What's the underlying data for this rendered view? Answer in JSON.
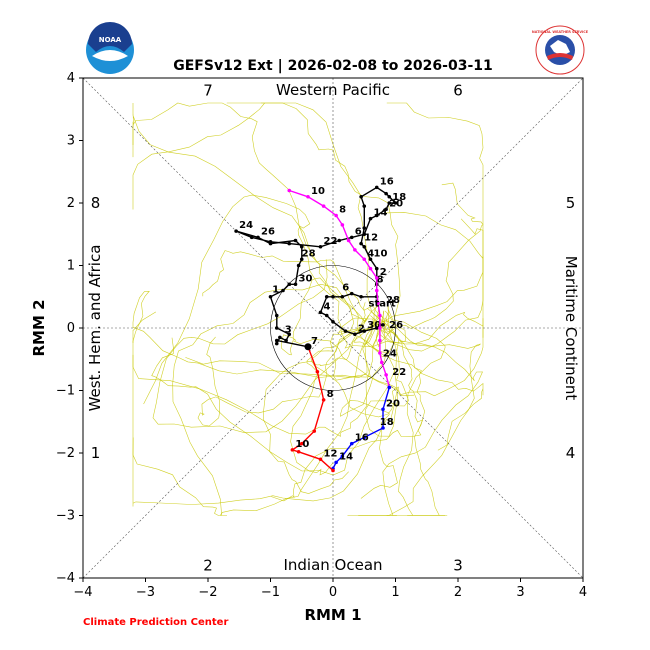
{
  "chart_data": {
    "type": "line",
    "title": "GEFSv12 Ext | 2026-02-08 to 2026-03-11",
    "xlabel": "RMM 1",
    "ylabel": "RMM 2",
    "xlim": [
      -4,
      4
    ],
    "ylim": [
      -4,
      4
    ],
    "xticks": [
      -4,
      -3,
      -2,
      -1,
      0,
      1,
      2,
      3,
      4
    ],
    "yticks": [
      -4,
      -3,
      -2,
      -1,
      0,
      1,
      2,
      3,
      4
    ],
    "phase_numbers": [
      {
        "label": "7",
        "x": -2.0,
        "y": 3.8
      },
      {
        "label": "6",
        "x": 2.0,
        "y": 3.8
      },
      {
        "label": "8",
        "x": -3.8,
        "y": 2.0
      },
      {
        "label": "5",
        "x": 3.8,
        "y": 2.0
      },
      {
        "label": "1",
        "x": -3.8,
        "y": -2.0
      },
      {
        "label": "4",
        "x": 3.8,
        "y": -2.0
      },
      {
        "label": "2",
        "x": -2.0,
        "y": -3.8
      },
      {
        "label": "3",
        "x": 2.0,
        "y": -3.8
      }
    ],
    "regions": {
      "top": "Western Pacific",
      "bottom": "Indian Ocean",
      "left": "West. Hem. and Africa",
      "right": "Maritime Continent"
    },
    "series": [
      {
        "name": "observed",
        "color": "#000000",
        "points": [
          [
            -0.4,
            -0.3
          ],
          [
            -0.9,
            -0.2
          ],
          [
            -0.9,
            -0.25
          ],
          [
            -0.85,
            -0.15
          ],
          [
            -0.75,
            -0.2
          ],
          [
            -0.7,
            -0.1
          ],
          [
            -0.9,
            0.0
          ],
          [
            -0.9,
            0.2
          ],
          [
            -1.0,
            0.5
          ],
          [
            -0.8,
            0.6
          ],
          [
            -0.7,
            0.7
          ],
          [
            -0.6,
            0.7
          ],
          [
            -0.55,
            1.0
          ],
          [
            -0.5,
            1.1
          ],
          [
            -0.5,
            1.3
          ],
          [
            -0.6,
            1.4
          ],
          [
            -1.0,
            1.35
          ],
          [
            -1.2,
            1.45
          ],
          [
            -1.55,
            1.55
          ],
          [
            -1.3,
            1.45
          ],
          [
            -1.0,
            1.38
          ],
          [
            -0.7,
            1.35
          ],
          [
            -0.2,
            1.3
          ],
          [
            0.1,
            1.4
          ],
          [
            0.3,
            1.45
          ],
          [
            0.5,
            1.5
          ],
          [
            0.6,
            1.75
          ],
          [
            0.7,
            1.8
          ],
          [
            0.85,
            1.9
          ],
          [
            0.9,
            2.0
          ],
          [
            1.0,
            2.0
          ],
          [
            0.9,
            2.1
          ],
          [
            0.85,
            2.15
          ],
          [
            0.7,
            2.25
          ],
          [
            0.45,
            2.1
          ],
          [
            0.5,
            1.95
          ],
          [
            0.5,
            1.6
          ],
          [
            0.45,
            1.35
          ],
          [
            0.5,
            1.3
          ],
          [
            0.6,
            1.1
          ],
          [
            0.7,
            0.95
          ],
          [
            0.7,
            0.7
          ],
          [
            0.7,
            0.5
          ],
          [
            0.45,
            0.5
          ],
          [
            0.3,
            0.55
          ],
          [
            0.15,
            0.5
          ],
          [
            0.0,
            0.5
          ],
          [
            -0.1,
            0.5
          ],
          [
            -0.2,
            0.25
          ],
          [
            -0.1,
            0.2
          ],
          [
            0.0,
            0.1
          ],
          [
            0.2,
            -0.05
          ],
          [
            0.35,
            -0.1
          ],
          [
            0.5,
            -0.05
          ],
          [
            0.7,
            0.0
          ],
          [
            0.75,
            0.05
          ],
          [
            0.8,
            0.05
          ]
        ],
        "labels": [
          {
            "text": "7",
            "x": -0.4,
            "y": -0.3
          },
          {
            "text": "1",
            "x": -1.02,
            "y": 0.52
          },
          {
            "text": "3",
            "x": -0.82,
            "y": -0.12
          },
          {
            "text": "30",
            "x": -0.6,
            "y": 0.7
          },
          {
            "text": "28",
            "x": -0.55,
            "y": 1.1
          },
          {
            "text": "26",
            "x": -1.2,
            "y": 1.45
          },
          {
            "text": "24",
            "x": -1.55,
            "y": 1.55
          },
          {
            "text": "22",
            "x": -0.2,
            "y": 1.3
          },
          {
            "text": "6",
            "x": 0.3,
            "y": 1.45
          },
          {
            "text": "14",
            "x": 0.6,
            "y": 1.75
          },
          {
            "text": "20",
            "x": 0.85,
            "y": 1.9
          },
          {
            "text": "18",
            "x": 0.9,
            "y": 2.0
          },
          {
            "text": "16",
            "x": 0.7,
            "y": 2.25
          },
          {
            "text": "12",
            "x": 0.45,
            "y": 1.35
          },
          {
            "text": "10",
            "x": 0.6,
            "y": 1.1
          },
          {
            "text": "8",
            "x": 0.65,
            "y": 0.68
          },
          {
            "text": "6",
            "x": 0.1,
            "y": 0.55
          },
          {
            "text": "4",
            "x": -0.2,
            "y": 0.25
          },
          {
            "text": "2",
            "x": 0.35,
            "y": -0.1
          },
          {
            "text": "30",
            "x": 0.5,
            "y": -0.05
          }
        ]
      },
      {
        "name": "forecast-ensemble-mean-week1",
        "color": "#ff00ff",
        "points": [
          [
            -0.7,
            2.2
          ],
          [
            -0.4,
            2.1
          ],
          [
            -0.15,
            1.95
          ],
          [
            0.05,
            1.8
          ],
          [
            0.15,
            1.65
          ],
          [
            0.25,
            1.4
          ],
          [
            0.35,
            1.25
          ],
          [
            0.5,
            1.1
          ],
          [
            0.6,
            0.95
          ],
          [
            0.7,
            0.8
          ],
          [
            0.7,
            0.6
          ],
          [
            0.72,
            0.4
          ],
          [
            0.75,
            0.2
          ],
          [
            0.75,
            0.0
          ],
          [
            0.75,
            -0.2
          ],
          [
            0.75,
            -0.4
          ],
          [
            0.78,
            -0.55
          ],
          [
            0.85,
            -0.75
          ],
          [
            0.9,
            -0.95
          ]
        ],
        "labels": [
          {
            "text": "10",
            "x": -0.4,
            "y": 2.1
          },
          {
            "text": "8",
            "x": 0.05,
            "y": 1.8
          },
          {
            "text": "4",
            "x": 0.5,
            "y": 1.1
          },
          {
            "text": "2",
            "x": 0.7,
            "y": 0.8
          },
          {
            "text": "start",
            "x": 0.52,
            "y": 0.3
          },
          {
            "text": "28",
            "x": 0.8,
            "y": 0.35
          },
          {
            "text": "26",
            "x": 0.85,
            "y": -0.05
          },
          {
            "text": "24",
            "x": 0.75,
            "y": -0.5
          },
          {
            "text": "22",
            "x": 0.9,
            "y": -0.8
          }
        ]
      },
      {
        "name": "forecast-week2",
        "color": "#0000ff",
        "points": [
          [
            0.9,
            -0.95
          ],
          [
            0.8,
            -1.3
          ],
          [
            0.8,
            -1.6
          ],
          [
            0.5,
            -1.75
          ],
          [
            0.3,
            -1.85
          ],
          [
            0.15,
            -2.05
          ],
          [
            0.05,
            -2.15
          ],
          [
            0.0,
            -2.25
          ]
        ],
        "labels": [
          {
            "text": "20",
            "x": 0.8,
            "y": -1.3
          },
          {
            "text": "18",
            "x": 0.7,
            "y": -1.6
          },
          {
            "text": "16",
            "x": 0.3,
            "y": -1.85
          },
          {
            "text": "14",
            "x": 0.05,
            "y": -2.15
          }
        ]
      },
      {
        "name": "forecast-week3",
        "color": "#ff0000",
        "points": [
          [
            -0.4,
            -0.3
          ],
          [
            -0.25,
            -0.7
          ],
          [
            -0.15,
            -1.15
          ],
          [
            -0.3,
            -1.65
          ],
          [
            -0.5,
            -1.85
          ],
          [
            -0.65,
            -1.95
          ],
          [
            -0.55,
            -1.98
          ],
          [
            -0.2,
            -2.1
          ],
          [
            0.0,
            -2.28
          ]
        ],
        "labels": [
          {
            "text": "8",
            "x": -0.15,
            "y": -1.15
          },
          {
            "text": "10",
            "x": -0.65,
            "y": -1.95
          },
          {
            "text": "12",
            "x": -0.2,
            "y": -2.1
          }
        ]
      }
    ],
    "ensemble_color": "#c8c800"
  },
  "credit": "Climate Prediction Center",
  "logos": {
    "left": "NOAA",
    "right": "NATIONAL WEATHER SERVICE"
  }
}
